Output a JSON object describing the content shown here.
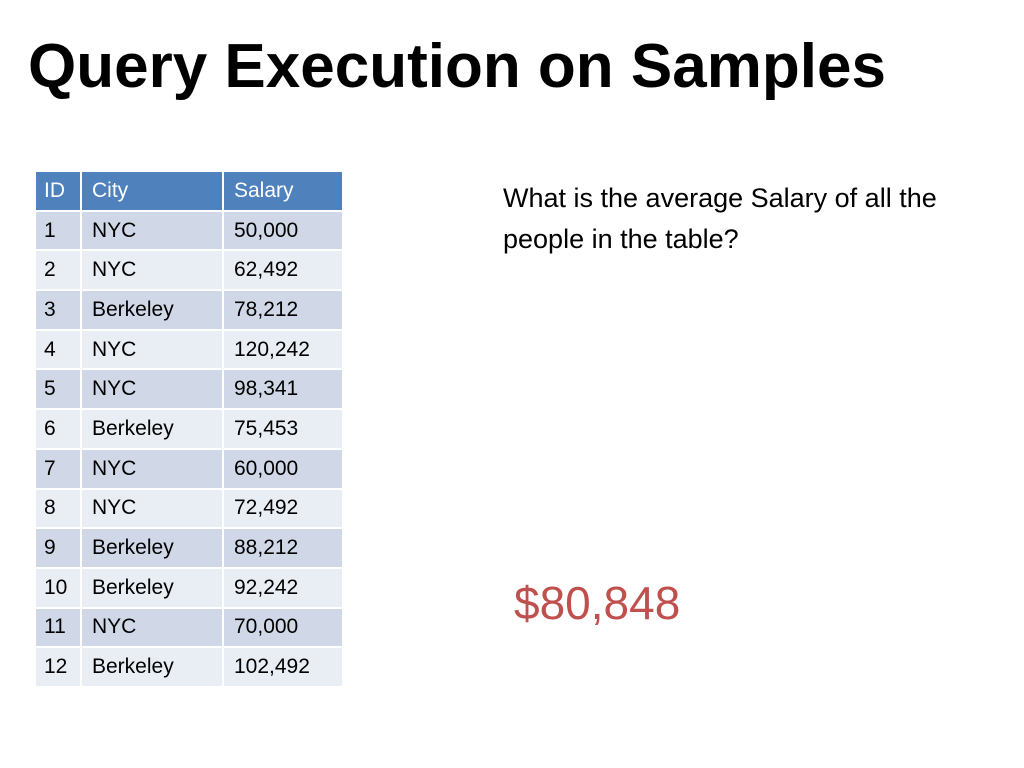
{
  "slide": {
    "title": "Query Execution on Samples",
    "question": "What is the average Salary of all the people in the table?",
    "answer": "$80,848"
  },
  "table": {
    "headers": [
      "ID",
      "City",
      "Salary"
    ],
    "rows": [
      [
        "1",
        "NYC",
        "50,000"
      ],
      [
        "2",
        "NYC",
        "62,492"
      ],
      [
        "3",
        "Berkeley",
        "78,212"
      ],
      [
        "4",
        "NYC",
        "120,242"
      ],
      [
        "5",
        "NYC",
        "98,341"
      ],
      [
        "6",
        "Berkeley",
        "75,453"
      ],
      [
        "7",
        "NYC",
        "60,000"
      ],
      [
        "8",
        "NYC",
        "72,492"
      ],
      [
        "9",
        "Berkeley",
        "88,212"
      ],
      [
        "10",
        "Berkeley",
        "92,242"
      ],
      [
        "11",
        "NYC",
        "70,000"
      ],
      [
        "12",
        "Berkeley",
        "102,492"
      ]
    ]
  },
  "colors": {
    "header_bg": "#4f81bd",
    "row_odd_bg": "#d0d8e8",
    "row_even_bg": "#e9edf4",
    "answer": "#c0504d"
  }
}
